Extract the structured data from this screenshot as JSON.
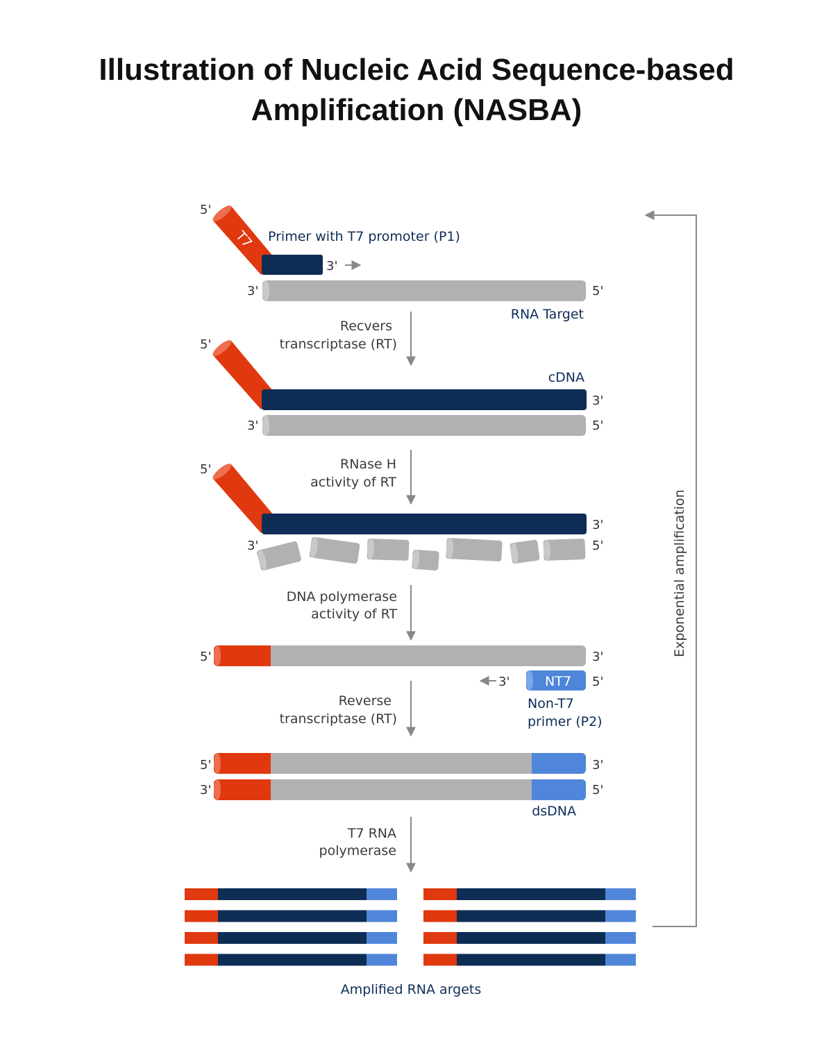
{
  "title": {
    "line1": "Illustration of Nucleic Acid Sequence-based",
    "line2": "Amplification (NASBA)"
  },
  "colors": {
    "t7_promoter": "#e0380f",
    "cdna_strand": "#0d2d55",
    "rna_strand": "#b1b1b1",
    "non_t7_primer": "#4f86d9",
    "arrow": "#888888"
  },
  "stage1": {
    "primer_end_5": "5'",
    "t7_label": "T7",
    "primer_label": "Primer with T7 promoter (P1)",
    "primer_end_3": "3'",
    "rna_left_end": "3'",
    "rna_right_end": "5'",
    "rna_label": "RNA Target"
  },
  "step1": {
    "line1": "Recvers",
    "line2": "transcriptase (RT)"
  },
  "stage2": {
    "primer_end_5": "5'",
    "cdna_label": "cDNA",
    "cdna_right_end": "3'",
    "rna_left_end": "3'",
    "rna_right_end": "5'"
  },
  "step2": {
    "line1": "RNase H",
    "line2": "activity of RT"
  },
  "stage3": {
    "primer_end_5": "5'",
    "cdna_right_end": "3'",
    "fragments_left_end": "3'",
    "fragments_right_end": "5'"
  },
  "step3": {
    "line1": "DNA polymerase",
    "line2": "activity of RT"
  },
  "stage4": {
    "strand_left_end": "5'",
    "strand_right_end": "3'",
    "primer_arrow_end": "3'",
    "primer_label_box": "NT7",
    "primer_right_end": "5'",
    "primer_caption1": "Non-T7",
    "primer_caption2": "primer (P2)"
  },
  "step4": {
    "line1": "Reverse",
    "line2": "transcriptase (RT)"
  },
  "stage5": {
    "top_left_end": "5'",
    "top_right_end": "3'",
    "bottom_left_end": "3'",
    "bottom_right_end": "5'",
    "dsdna_label": "dsDNA"
  },
  "step5": {
    "line1": "T7 RNA",
    "line2": "polymerase"
  },
  "amplified": {
    "label": "Amplified RNA argets",
    "columns": 2,
    "rows": 4
  },
  "cycle_label": "Exponential amplification"
}
